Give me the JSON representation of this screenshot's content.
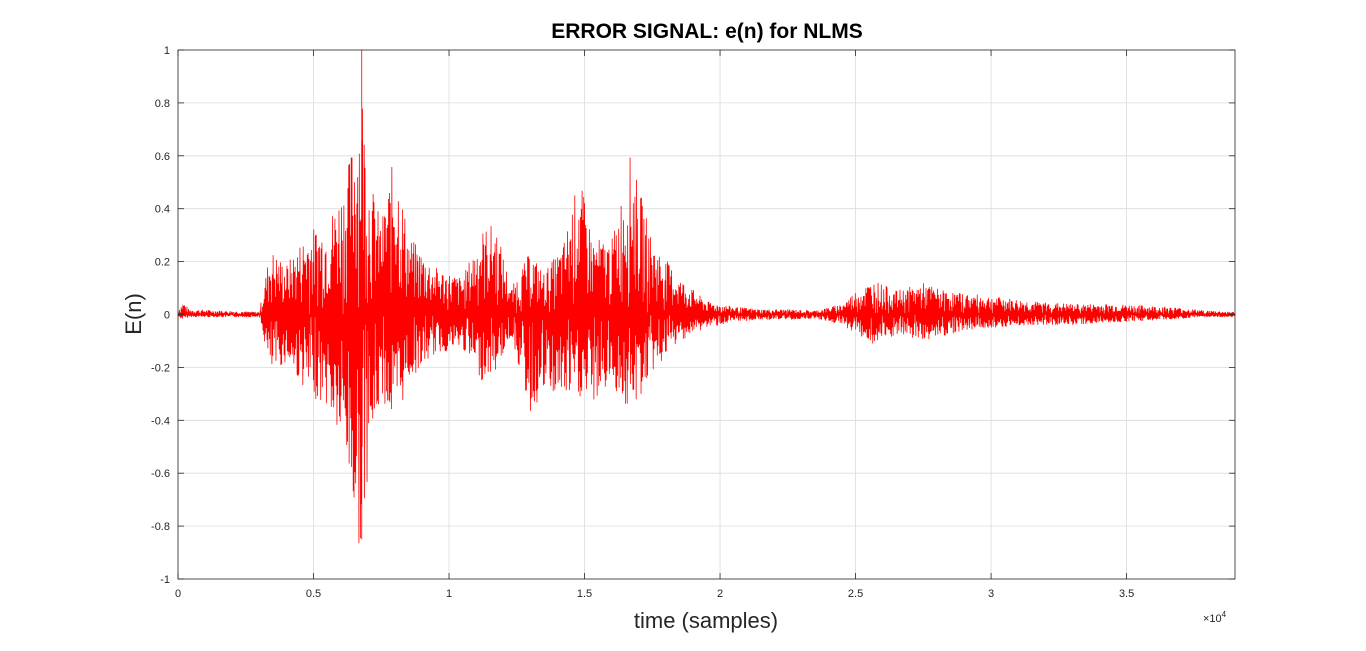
{
  "chart_data": {
    "type": "line",
    "title": "ERROR SIGNAL: e(n) for NLMS",
    "xlabel": "time (samples)",
    "ylabel": "E(n)",
    "xlim": [
      0,
      39000
    ],
    "ylim": [
      -1,
      1
    ],
    "x_exponent_label": "×10",
    "x_exponent_power": "4",
    "x_ticks": [
      0,
      5000,
      10000,
      15000,
      20000,
      25000,
      30000,
      35000
    ],
    "x_tick_labels": [
      "0",
      "0.5",
      "1",
      "1.5",
      "2",
      "2.5",
      "3",
      "3.5"
    ],
    "y_ticks": [
      -1,
      -0.8,
      -0.6,
      -0.4,
      -0.2,
      0,
      0.2,
      0.4,
      0.6,
      0.8,
      1
    ],
    "y_tick_labels": [
      "-1",
      "-0.8",
      "-0.6",
      "-0.4",
      "-0.2",
      "0",
      "0.2",
      "0.4",
      "0.6",
      "0.8",
      "1"
    ],
    "grid": true,
    "series": [
      {
        "color": "#ff0000",
        "envelope": {
          "x": [
            0,
            200,
            400,
            3000,
            3200,
            3400,
            4000,
            4800,
            5500,
            6200,
            6600,
            6800,
            7000,
            7500,
            8000,
            8500,
            9500,
            10500,
            11200,
            11700,
            12300,
            13000,
            13500,
            14200,
            14800,
            15300,
            16000,
            16700,
            17500,
            18500,
            19500,
            20500,
            21500,
            22500,
            23500,
            24500,
            25000,
            25700,
            26500,
            27500,
            28300,
            29000,
            30000,
            31500,
            33000,
            34500,
            36500,
            38000,
            39000
          ],
          "upper": [
            0.02,
            0.05,
            0.02,
            0.01,
            0.13,
            0.25,
            0.19,
            0.32,
            0.35,
            0.52,
            0.75,
            0.88,
            0.55,
            0.35,
            0.62,
            0.3,
            0.18,
            0.14,
            0.32,
            0.35,
            0.1,
            0.24,
            0.16,
            0.26,
            0.53,
            0.29,
            0.28,
            0.61,
            0.28,
            0.14,
            0.05,
            0.03,
            0.02,
            0.02,
            0.015,
            0.04,
            0.09,
            0.13,
            0.09,
            0.12,
            0.09,
            0.08,
            0.07,
            0.05,
            0.04,
            0.04,
            0.03,
            0.015,
            0.01
          ],
          "lower": [
            -0.01,
            -0.02,
            -0.01,
            -0.01,
            -0.11,
            -0.23,
            -0.18,
            -0.3,
            -0.35,
            -0.55,
            -0.88,
            -0.87,
            -0.6,
            -0.3,
            -0.45,
            -0.25,
            -0.15,
            -0.13,
            -0.25,
            -0.22,
            -0.08,
            -0.38,
            -0.3,
            -0.32,
            -0.32,
            -0.34,
            -0.26,
            -0.39,
            -0.22,
            -0.1,
            -0.05,
            -0.03,
            -0.02,
            -0.02,
            -0.015,
            -0.04,
            -0.07,
            -0.12,
            -0.08,
            -0.1,
            -0.08,
            -0.06,
            -0.05,
            -0.04,
            -0.04,
            -0.03,
            -0.02,
            -0.01,
            -0.01
          ]
        }
      }
    ]
  }
}
